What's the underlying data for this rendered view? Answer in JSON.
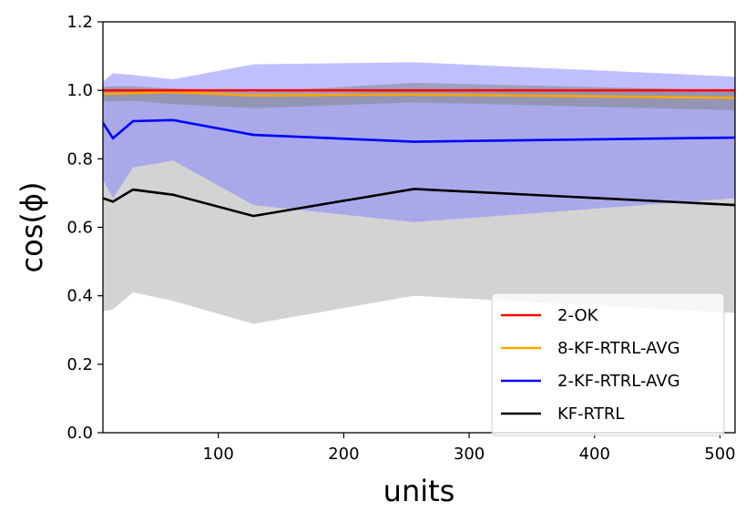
{
  "chart_data": {
    "type": "line",
    "xlabel": "units",
    "ylabel": "cos(ϕ)",
    "xlim": [
      8,
      512
    ],
    "ylim": [
      0.0,
      1.2
    ],
    "xticks": [
      100,
      200,
      300,
      400,
      500
    ],
    "yticks": [
      0.0,
      0.2,
      0.4,
      0.6,
      0.8,
      1.0,
      1.2
    ],
    "x": [
      8,
      16,
      32,
      64,
      128,
      256,
      512
    ],
    "legend_position": "lower-right",
    "series": [
      {
        "name": "KF-RTRL",
        "color": "#000000",
        "band_color": "#a8a8a8",
        "values": [
          0.685,
          0.675,
          0.71,
          0.695,
          0.633,
          0.712,
          0.665
        ],
        "lower": [
          0.355,
          0.36,
          0.41,
          0.385,
          0.318,
          0.4,
          0.35
        ],
        "upper": [
          1.0,
          0.995,
          1.0,
          1.0,
          0.98,
          1.0,
          1.0
        ]
      },
      {
        "name": "2-KF-RTRL-AVG",
        "color": "#0000ff",
        "band_color": "#8080ff",
        "values": [
          0.905,
          0.86,
          0.91,
          0.913,
          0.87,
          0.85,
          0.862
        ],
        "lower": [
          0.74,
          0.685,
          0.775,
          0.795,
          0.665,
          0.615,
          0.685
        ],
        "upper": [
          1.025,
          1.05,
          1.045,
          1.032,
          1.076,
          1.082,
          1.04
        ]
      },
      {
        "name": "8-KF-RTRL-AVG",
        "color": "#ffa500",
        "band_color": "#808080",
        "values": [
          0.99,
          0.99,
          0.992,
          0.995,
          0.985,
          0.988,
          0.978
        ],
        "lower": [
          0.97,
          0.968,
          0.97,
          0.96,
          0.948,
          0.965,
          0.942
        ],
        "upper": [
          1.01,
          1.012,
          1.012,
          1.005,
          0.995,
          1.022,
          1.0
        ]
      },
      {
        "name": "2-OK",
        "color": "#ff0000",
        "band_color": "#ff0000",
        "values": [
          1.0,
          1.0,
          1.0,
          1.0,
          1.0,
          1.0,
          1.0
        ],
        "lower": [
          0.999,
          0.999,
          0.999,
          0.999,
          0.999,
          0.999,
          0.999
        ],
        "upper": [
          1.0,
          1.0,
          1.0,
          1.0,
          1.0,
          1.0,
          1.0
        ]
      }
    ],
    "legend_order": [
      "2-OK",
      "8-KF-RTRL-AVG",
      "2-KF-RTRL-AVG",
      "KF-RTRL"
    ]
  }
}
